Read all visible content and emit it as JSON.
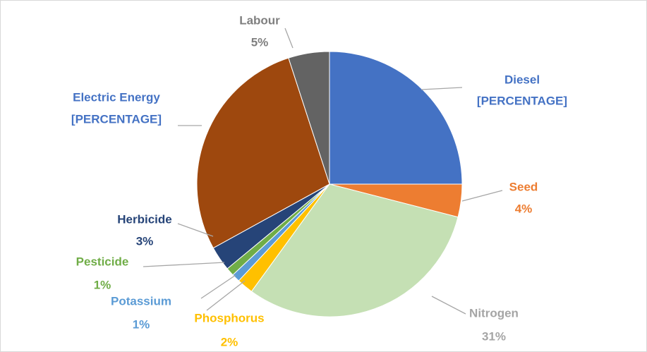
{
  "chart_data": {
    "type": "pie",
    "categories": [
      "Diesel",
      "Seed",
      "Nitrogen",
      "Phosphorus",
      "Potassium",
      "Pesticide",
      "Herbicide",
      "Electric Energy",
      "Labour"
    ],
    "values": [
      25,
      4,
      31,
      2,
      1,
      1,
      3,
      28,
      5
    ],
    "value_labels": [
      "[PERCENTAGE]",
      "4%",
      "31%",
      "2%",
      "1%",
      "1%",
      "3%",
      "[PERCENTAGE]",
      "5%"
    ],
    "colors": [
      "#4472c4",
      "#ed7d31",
      "#c5e0b4",
      "#ffc000",
      "#5b9bd5",
      "#70ad47",
      "#264478",
      "#9e480e",
      "#636363"
    ],
    "label_colors": [
      "#4472c4",
      "#ed7d31",
      "#a5a5a5",
      "#ffc000",
      "#5b9bd5",
      "#70ad47",
      "#264478",
      "#4472c4",
      "#7f7f7f"
    ]
  }
}
